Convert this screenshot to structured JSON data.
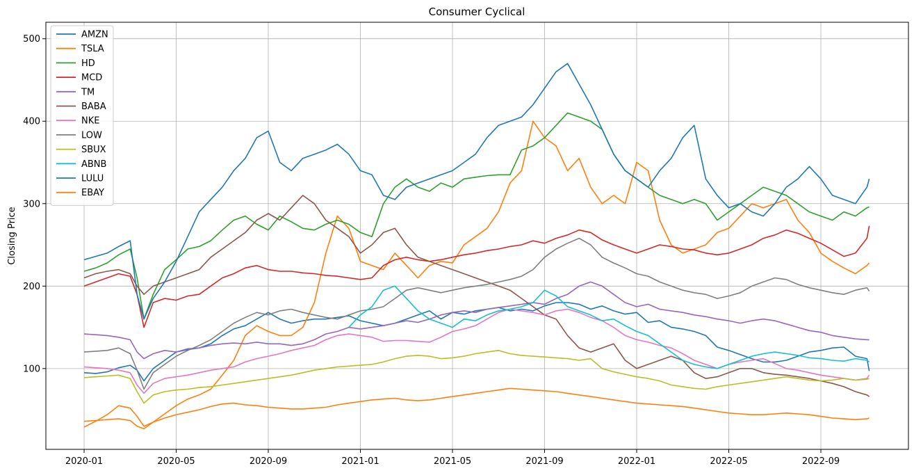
{
  "chart_data": {
    "type": "line",
    "title": "Consumer Cyclical",
    "xlabel": "",
    "ylabel": "Closing Price",
    "ylim": [
      2,
      520
    ],
    "yticks": [
      100,
      200,
      300,
      400,
      500
    ],
    "xticks": [
      "2020-01",
      "2020-05",
      "2020-09",
      "2021-01",
      "2021-05",
      "2021-09",
      "2022-01",
      "2022-05",
      "2022-09"
    ],
    "grid": true,
    "legend_position": "top-left",
    "x_months": [
      0,
      0.5,
      1,
      1.5,
      2,
      2.3,
      2.6,
      3,
      3.5,
      4,
      4.5,
      5,
      5.5,
      6,
      6.5,
      7,
      7.5,
      8,
      8.5,
      9,
      9.5,
      10,
      10.5,
      11,
      11.5,
      12,
      12.5,
      13,
      13.5,
      14,
      14.5,
      15,
      15.5,
      16,
      16.5,
      17,
      17.5,
      18,
      18.5,
      19,
      19.5,
      20,
      20.5,
      21,
      21.5,
      22,
      22.5,
      23,
      23.5,
      24,
      24.5,
      25,
      25.5,
      26,
      26.5,
      27,
      27.5,
      28,
      28.5,
      29,
      29.5,
      30,
      30.5,
      31,
      31.5,
      32,
      32.5,
      33,
      33.5,
      34,
      34.1
    ],
    "series": [
      {
        "name": "AMZN",
        "color": "#1f77b4",
        "values": [
          95,
          94,
          96,
          101,
          104,
          98,
          85,
          100,
          110,
          120,
          123,
          125,
          130,
          140,
          148,
          152,
          160,
          168,
          160,
          155,
          158,
          160,
          160,
          162,
          164,
          158,
          155,
          152,
          155,
          160,
          165,
          170,
          160,
          168,
          166,
          170,
          172,
          174,
          170,
          172,
          170,
          176,
          180,
          180,
          178,
          172,
          176,
          170,
          166,
          168,
          156,
          158,
          150,
          148,
          145,
          140,
          126,
          122,
          117,
          112,
          108,
          108,
          110,
          115,
          120,
          122,
          125,
          126,
          115,
          112,
          97
        ]
      },
      {
        "name": "TSLA",
        "color": "#ff7f0e",
        "values": [
          29,
          36,
          44,
          55,
          52,
          42,
          30,
          35,
          45,
          55,
          63,
          68,
          75,
          92,
          110,
          140,
          152,
          145,
          140,
          140,
          150,
          180,
          240,
          285,
          270,
          230,
          225,
          220,
          240,
          225,
          210,
          225,
          230,
          228,
          250,
          260,
          270,
          290,
          325,
          340,
          400,
          380,
          370,
          340,
          355,
          320,
          300,
          310,
          300,
          350,
          340,
          280,
          250,
          240,
          245,
          250,
          265,
          270,
          285,
          300,
          295,
          300,
          305,
          280,
          265,
          240,
          230,
          222,
          215,
          225,
          228
        ]
      },
      {
        "name": "HD",
        "color": "#2ca02c",
        "values": [
          218,
          222,
          228,
          238,
          245,
          210,
          160,
          190,
          220,
          232,
          245,
          248,
          255,
          268,
          280,
          285,
          275,
          268,
          285,
          278,
          270,
          268,
          275,
          280,
          275,
          265,
          260,
          300,
          320,
          330,
          320,
          315,
          325,
          320,
          330,
          332,
          334,
          335,
          335,
          365,
          370,
          380,
          395,
          410,
          405,
          400,
          390,
          360,
          340,
          330,
          320,
          310,
          305,
          300,
          305,
          300,
          280,
          290,
          300,
          310,
          320,
          315,
          310,
          300,
          290,
          285,
          280,
          290,
          285,
          295,
          296
        ]
      },
      {
        "name": "MCD",
        "color": "#d62728",
        "values": [
          200,
          205,
          210,
          215,
          212,
          190,
          150,
          180,
          185,
          183,
          188,
          190,
          200,
          210,
          215,
          222,
          225,
          220,
          218,
          218,
          216,
          215,
          213,
          212,
          210,
          208,
          210,
          225,
          232,
          235,
          232,
          230,
          232,
          235,
          238,
          240,
          243,
          245,
          248,
          250,
          255,
          252,
          258,
          262,
          268,
          265,
          256,
          250,
          245,
          240,
          245,
          250,
          248,
          245,
          244,
          240,
          238,
          240,
          245,
          250,
          258,
          262,
          268,
          264,
          258,
          252,
          244,
          236,
          240,
          258,
          273
        ]
      },
      {
        "name": "TM",
        "color": "#9467bd",
        "values": [
          142,
          141,
          140,
          138,
          135,
          120,
          112,
          118,
          122,
          120,
          124,
          125,
          128,
          130,
          131,
          130,
          132,
          130,
          130,
          128,
          130,
          135,
          142,
          145,
          150,
          148,
          150,
          152,
          155,
          158,
          156,
          160,
          165,
          168,
          170,
          168,
          172,
          174,
          176,
          178,
          180,
          178,
          185,
          190,
          200,
          205,
          200,
          190,
          180,
          175,
          178,
          172,
          170,
          168,
          165,
          163,
          160,
          158,
          155,
          158,
          160,
          158,
          154,
          150,
          146,
          144,
          140,
          138,
          136,
          135,
          135
        ]
      },
      {
        "name": "BABA",
        "color": "#8c564b",
        "values": [
          210,
          215,
          218,
          220,
          215,
          200,
          190,
          200,
          205,
          210,
          215,
          220,
          235,
          245,
          255,
          265,
          280,
          288,
          280,
          295,
          310,
          300,
          280,
          270,
          260,
          240,
          250,
          265,
          270,
          250,
          235,
          230,
          225,
          220,
          215,
          210,
          205,
          200,
          195,
          185,
          175,
          165,
          160,
          140,
          125,
          120,
          125,
          130,
          110,
          100,
          105,
          110,
          115,
          110,
          95,
          88,
          90,
          95,
          100,
          100,
          95,
          93,
          92,
          90,
          88,
          85,
          82,
          78,
          72,
          68,
          66
        ]
      },
      {
        "name": "NKE",
        "color": "#e377c2",
        "values": [
          102,
          101,
          100,
          98,
          95,
          80,
          70,
          82,
          88,
          90,
          92,
          95,
          98,
          100,
          102,
          108,
          112,
          115,
          118,
          122,
          125,
          128,
          135,
          140,
          142,
          140,
          138,
          133,
          134,
          134,
          133,
          132,
          138,
          145,
          148,
          152,
          160,
          168,
          172,
          170,
          168,
          165,
          170,
          172,
          168,
          162,
          158,
          150,
          140,
          135,
          132,
          128,
          125,
          118,
          110,
          105,
          100,
          105,
          108,
          110,
          112,
          106,
          100,
          98,
          95,
          92,
          90,
          88,
          86,
          88,
          92
        ]
      },
      {
        "name": "LOW",
        "color": "#7f7f7f",
        "values": [
          120,
          121,
          122,
          125,
          118,
          98,
          75,
          95,
          105,
          115,
          122,
          128,
          135,
          145,
          155,
          162,
          168,
          165,
          170,
          172,
          168,
          165,
          162,
          160,
          165,
          170,
          172,
          175,
          185,
          195,
          198,
          195,
          192,
          195,
          198,
          200,
          202,
          205,
          208,
          212,
          220,
          235,
          245,
          252,
          258,
          250,
          235,
          228,
          222,
          215,
          212,
          205,
          200,
          195,
          192,
          190,
          185,
          188,
          192,
          200,
          205,
          210,
          208,
          202,
          198,
          195,
          192,
          190,
          195,
          198,
          194
        ]
      },
      {
        "name": "SBUX",
        "color": "#bcbd22",
        "values": [
          89,
          90,
          91,
          92,
          88,
          72,
          58,
          68,
          72,
          74,
          75,
          77,
          78,
          80,
          82,
          84,
          86,
          88,
          90,
          92,
          95,
          98,
          100,
          102,
          103,
          104,
          105,
          108,
          112,
          115,
          116,
          115,
          112,
          113,
          115,
          118,
          120,
          122,
          118,
          116,
          115,
          114,
          113,
          112,
          110,
          112,
          100,
          96,
          93,
          90,
          88,
          85,
          80,
          78,
          76,
          75,
          78,
          80,
          82,
          84,
          86,
          88,
          90,
          88,
          86,
          85,
          86,
          88,
          86,
          87,
          88
        ]
      },
      {
        "name": "ABNB",
        "color": "#17becf",
        "values": [
          null,
          null,
          null,
          null,
          null,
          null,
          null,
          null,
          null,
          null,
          null,
          null,
          null,
          null,
          null,
          null,
          null,
          null,
          null,
          null,
          null,
          null,
          null,
          null,
          150,
          165,
          175,
          195,
          200,
          185,
          170,
          160,
          155,
          150,
          160,
          158,
          165,
          170,
          172,
          175,
          180,
          195,
          188,
          175,
          170,
          165,
          158,
          160,
          152,
          145,
          140,
          130,
          120,
          110,
          105,
          102,
          100,
          105,
          110,
          115,
          118,
          120,
          118,
          116,
          113,
          112,
          110,
          109,
          112,
          110,
          108
        ]
      },
      {
        "name": "LULU",
        "color": "#1f77b4",
        "values": [
          232,
          236,
          240,
          248,
          255,
          190,
          160,
          185,
          205,
          230,
          260,
          290,
          305,
          320,
          340,
          355,
          380,
          388,
          350,
          340,
          355,
          360,
          365,
          372,
          360,
          340,
          335,
          310,
          305,
          320,
          325,
          330,
          335,
          340,
          350,
          360,
          380,
          395,
          400,
          405,
          420,
          440,
          460,
          470,
          445,
          420,
          390,
          360,
          340,
          330,
          320,
          340,
          355,
          380,
          395,
          330,
          310,
          295,
          300,
          290,
          285,
          300,
          320,
          330,
          345,
          330,
          310,
          305,
          300,
          320,
          330
        ]
      },
      {
        "name": "EBAY",
        "color": "#ff7f0e",
        "values": [
          36,
          37,
          38,
          39,
          37,
          30,
          27,
          35,
          40,
          44,
          47,
          50,
          54,
          57,
          58,
          56,
          55,
          53,
          52,
          51,
          51,
          52,
          53,
          56,
          58,
          60,
          62,
          63,
          64,
          62,
          61,
          62,
          64,
          66,
          68,
          70,
          72,
          74,
          76,
          75,
          74,
          73,
          72,
          70,
          68,
          66,
          64,
          62,
          60,
          58,
          57,
          56,
          55,
          54,
          52,
          50,
          48,
          46,
          45,
          44,
          44,
          45,
          46,
          45,
          44,
          42,
          40,
          39,
          38,
          39,
          40
        ]
      }
    ]
  }
}
